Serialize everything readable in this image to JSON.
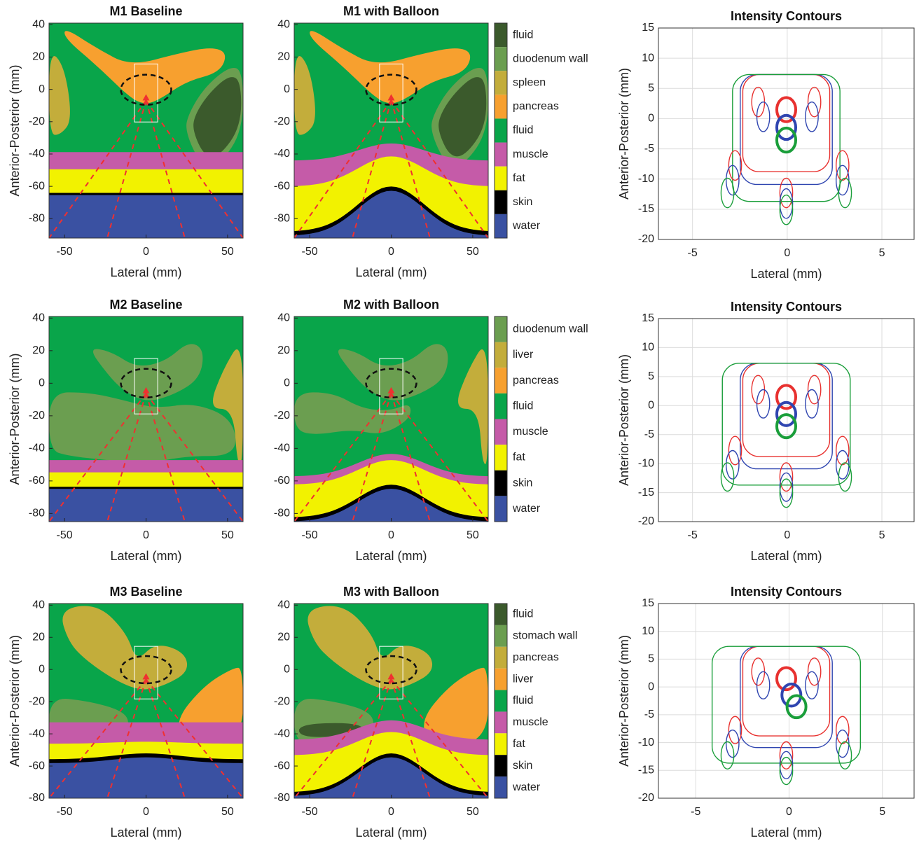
{
  "chart_data": [
    {
      "type": "segmentation",
      "title": "M1 Baseline",
      "x_label": "Lateral (mm)",
      "y_label": "Anterior-Posterior (mm)",
      "xlim": [
        -59.5,
        59.5
      ],
      "ylim": [
        -92,
        41
      ],
      "xticks": [
        -50,
        0,
        50
      ],
      "yticks": [
        -80,
        -60,
        -40,
        -20,
        0,
        20,
        40
      ]
    },
    {
      "type": "segmentation",
      "title": "M1 with Balloon",
      "x_label": "Lateral (mm)",
      "xlim": [
        -59.5,
        59.5
      ],
      "ylim": [
        -92,
        41
      ],
      "xticks": [
        -50,
        0,
        50
      ],
      "yticks": [
        -80,
        -60,
        -40,
        -20,
        0,
        20,
        40
      ],
      "legend": [
        {
          "name": "fluid",
          "color": "#3b5a2c"
        },
        {
          "name": "duodenum wall",
          "color": "#6b9e50"
        },
        {
          "name": "spleen",
          "color": "#c3ad3b"
        },
        {
          "name": "pancreas",
          "color": "#f7a02f"
        },
        {
          "name": "fluid",
          "color": "#09a54a"
        },
        {
          "name": "muscle",
          "color": "#c55ba8"
        },
        {
          "name": "fat",
          "color": "#f2f200"
        },
        {
          "name": "skin",
          "color": "#000000"
        },
        {
          "name": "water",
          "color": "#3a51a2"
        }
      ]
    },
    {
      "type": "contour",
      "title": "Intensity Contours",
      "x_label": "Lateral (mm)",
      "y_label": "Anterior-Posterior (mm)",
      "xlim": [
        -6.8,
        6.7
      ],
      "ylim": [
        -20,
        15
      ],
      "xticks": [
        -5,
        0,
        5
      ],
      "yticks": [
        -20,
        -15,
        -10,
        -5,
        0,
        5,
        10,
        15
      ],
      "grid": true
    },
    {
      "type": "segmentation",
      "title": "M2 Baseline",
      "x_label": "Lateral (mm)",
      "y_label": "Anterior-Posterior (mm)",
      "xlim": [
        -59.5,
        59.5
      ],
      "ylim": [
        -85,
        41
      ],
      "xticks": [
        -50,
        0,
        50
      ],
      "yticks": [
        -80,
        -60,
        -40,
        -20,
        0,
        20,
        40
      ]
    },
    {
      "type": "segmentation",
      "title": "M2 with Balloon",
      "x_label": "Lateral (mm)",
      "xlim": [
        -59.5,
        59.5
      ],
      "ylim": [
        -85,
        41
      ],
      "xticks": [
        -50,
        0,
        50
      ],
      "yticks": [
        -80,
        -60,
        -40,
        -20,
        0,
        20,
        40
      ],
      "legend": [
        {
          "name": "duodenum wall",
          "color": "#6b9e50"
        },
        {
          "name": "liver",
          "color": "#c3ad3b"
        },
        {
          "name": "pancreas",
          "color": "#f7a02f"
        },
        {
          "name": "fluid",
          "color": "#09a54a"
        },
        {
          "name": "muscle",
          "color": "#c55ba8"
        },
        {
          "name": "fat",
          "color": "#f2f200"
        },
        {
          "name": "skin",
          "color": "#000000"
        },
        {
          "name": "water",
          "color": "#3a51a2"
        }
      ]
    },
    {
      "type": "contour",
      "title": "Intensity Contours",
      "x_label": "Lateral (mm)",
      "y_label": "Anterior-Posterior (mm)",
      "xlim": [
        -6.8,
        6.7
      ],
      "ylim": [
        -20,
        15
      ],
      "xticks": [
        -5,
        0,
        5
      ],
      "yticks": [
        -20,
        -15,
        -10,
        -5,
        0,
        5,
        10,
        15
      ],
      "grid": true
    },
    {
      "type": "segmentation",
      "title": "M3 Baseline",
      "x_label": "Lateral (mm)",
      "y_label": "Anterior-Posterior (mm)",
      "xlim": [
        -59.5,
        59.5
      ],
      "ylim": [
        -80,
        41
      ],
      "xticks": [
        -50,
        0,
        50
      ],
      "yticks": [
        -80,
        -60,
        -40,
        -20,
        0,
        20,
        40
      ]
    },
    {
      "type": "segmentation",
      "title": "M3 with Balloon",
      "x_label": "Lateral (mm)",
      "xlim": [
        -59.5,
        59.5
      ],
      "ylim": [
        -80,
        41
      ],
      "xticks": [
        -50,
        0,
        50
      ],
      "yticks": [
        -80,
        -60,
        -40,
        -20,
        0,
        20,
        40
      ],
      "legend": [
        {
          "name": "fluid",
          "color": "#3b5a2c"
        },
        {
          "name": "stomach wall",
          "color": "#6b9e50"
        },
        {
          "name": "pancreas",
          "color": "#c3ad3b"
        },
        {
          "name": "liver",
          "color": "#f7a02f"
        },
        {
          "name": "fluid",
          "color": "#09a54a"
        },
        {
          "name": "muscle",
          "color": "#c55ba8"
        },
        {
          "name": "fat",
          "color": "#f2f200"
        },
        {
          "name": "skin",
          "color": "#000000"
        },
        {
          "name": "water",
          "color": "#3a51a2"
        }
      ]
    },
    {
      "type": "contour",
      "title": "Intensity Contours",
      "x_label": "Lateral (mm)",
      "y_label": "Anterior-Posterior (mm)",
      "xlim": [
        -7,
        6.7
      ],
      "ylim": [
        -20,
        15
      ],
      "xticks": [
        -5,
        0,
        5
      ],
      "yticks": [
        -20,
        -15,
        -10,
        -5,
        0,
        5,
        10,
        15
      ],
      "grid": true
    }
  ]
}
